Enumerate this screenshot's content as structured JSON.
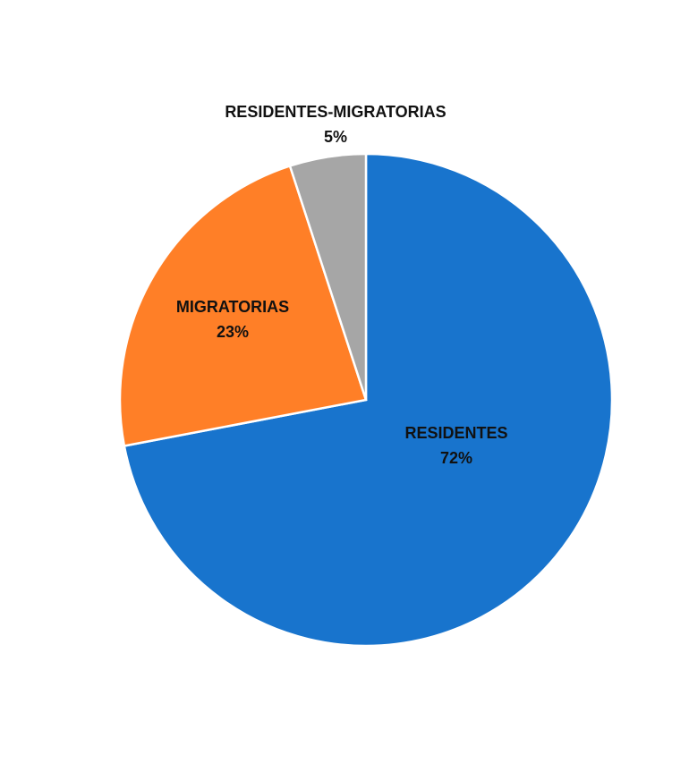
{
  "chart_data": {
    "type": "pie",
    "title": "",
    "slices": [
      {
        "label": "RESIDENTES",
        "value": 72,
        "percent_label": "72%",
        "color": "#1874CD"
      },
      {
        "label": "MIGRATORIAS",
        "value": 23,
        "percent_label": "23%",
        "color": "#FF7F27"
      },
      {
        "label": "RESIDENTES-MIGRATORIAS",
        "value": 5,
        "percent_label": "5%",
        "color": "#A6A6A6"
      }
    ],
    "start_angle": "12 o'clock",
    "direction": "clockwise",
    "legend": "none",
    "data_labels": "category and percent"
  }
}
